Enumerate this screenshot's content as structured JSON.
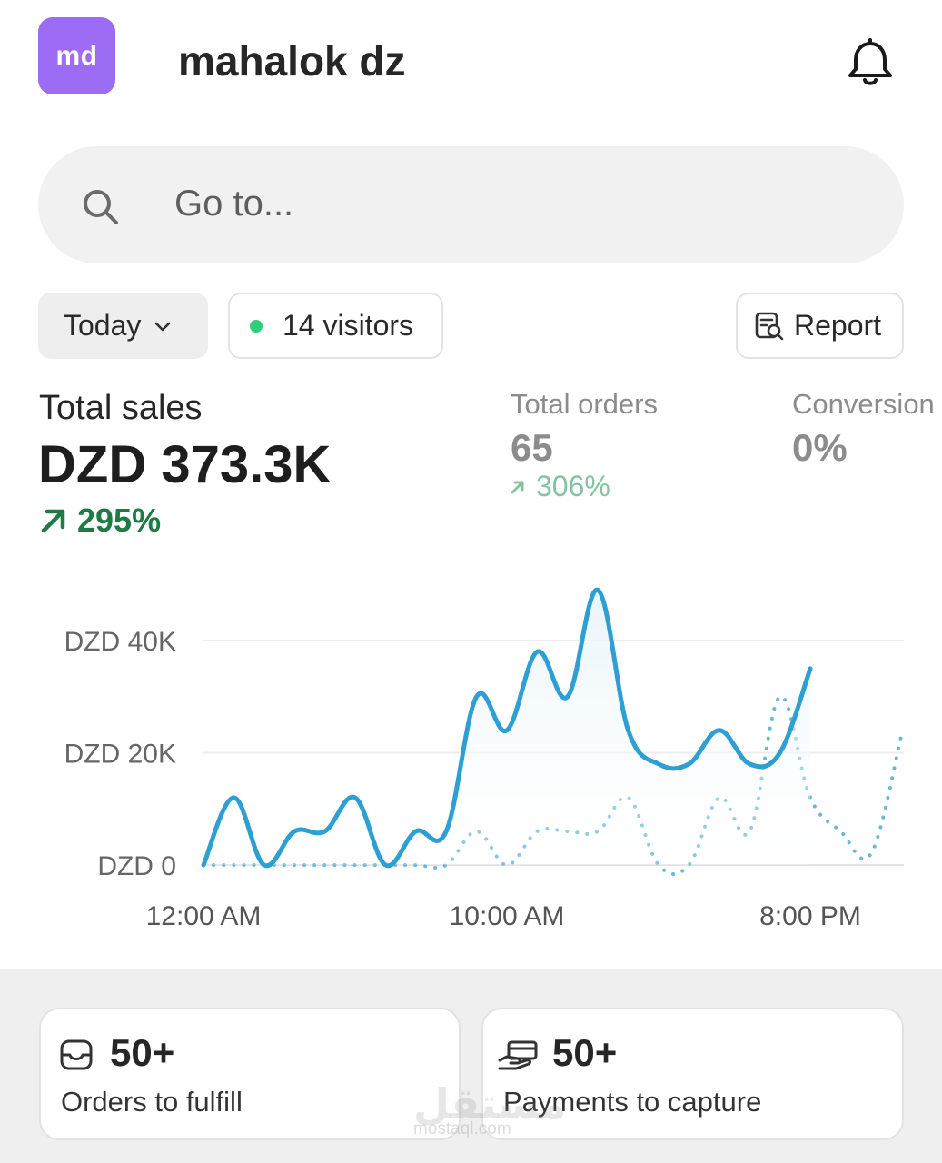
{
  "header": {
    "avatar_initials": "md",
    "store_name": "mahalok dz",
    "notifications_icon": "bell-icon"
  },
  "search": {
    "placeholder": "Go to...",
    "icon": "search-icon"
  },
  "filters": {
    "date_range": "Today",
    "visitors": "14 visitors",
    "report": "Report",
    "live_dot_color": "#2ecf7a"
  },
  "metrics": {
    "total_sales": {
      "label": "Total sales",
      "value": "DZD 373.3K",
      "change": "295%"
    },
    "total_orders": {
      "label": "Total orders",
      "value": "65",
      "change": "306%"
    },
    "conversion": {
      "label": "Conversion",
      "value": "0%"
    }
  },
  "chart_data": {
    "type": "line",
    "y_ticks": [
      "DZD 40K",
      "DZD 20K",
      "DZD 0"
    ],
    "x_ticks": [
      "12:00 AM",
      "10:00 AM",
      "8:00 PM"
    ],
    "ylim": [
      0,
      40000
    ],
    "grid": true,
    "x_hours": [
      0,
      1,
      2,
      3,
      4,
      5,
      6,
      7,
      8,
      9,
      10,
      11,
      12,
      13,
      14,
      15,
      16,
      17,
      18,
      19,
      20,
      21,
      22,
      23
    ],
    "series": [
      {
        "style": "solid",
        "color": "#2d9fd3",
        "values": [
          0,
          12000,
          0,
          6000,
          6000,
          12000,
          0,
          6000,
          6000,
          30000,
          24000,
          38000,
          30000,
          49000,
          24000,
          18000,
          18000,
          24000,
          18000,
          20000,
          35000
        ]
      },
      {
        "style": "dotted",
        "color": "#67b9d8",
        "values": [
          0,
          0,
          0,
          0,
          0,
          0,
          0,
          0,
          0,
          6000,
          0,
          6000,
          6000,
          6000,
          12000,
          0,
          0,
          12000,
          6000,
          30000,
          12000,
          6000,
          2000,
          23000
        ]
      }
    ]
  },
  "cards": [
    {
      "count": "50+",
      "label": "Orders to fulfill",
      "icon": "inbox-icon"
    },
    {
      "count": "50+",
      "label": "Payments to capture",
      "icon": "payment-hand-icon"
    }
  ],
  "watermark": {
    "text": "مستقل",
    "sub": "mostaql.com"
  }
}
